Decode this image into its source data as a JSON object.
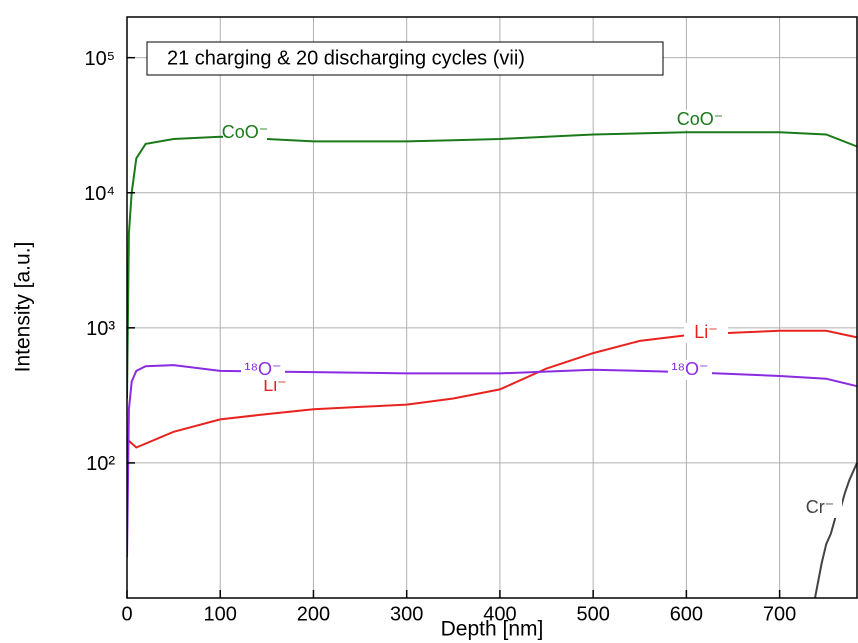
{
  "chart_data": {
    "type": "line",
    "title": "21 charging & 20 discharging cycles (vii)",
    "x_label": "Depth [nm]",
    "y_label": "Intensity [a.u.]",
    "log_y": true,
    "grid": true,
    "xlim": [
      0,
      783
    ],
    "ylim": [
      10,
      200000
    ],
    "xticks": [
      0,
      100,
      200,
      300,
      400,
      500,
      600,
      700
    ],
    "yticks": [
      {
        "value": 100,
        "label": "10²"
      },
      {
        "value": 1000,
        "label": "10³"
      },
      {
        "value": 10000,
        "label": "10⁴"
      },
      {
        "value": 100000,
        "label": "10⁵"
      }
    ],
    "series": [
      {
        "name": "CoO⁻",
        "color": "#1a7a1a",
        "x": [
          0,
          2,
          5,
          10,
          20,
          50,
          100,
          150,
          200,
          250,
          300,
          350,
          400,
          450,
          500,
          550,
          600,
          650,
          700,
          750,
          783
        ],
        "values": [
          300,
          5000,
          10000,
          18000,
          23000,
          25000,
          26000,
          25000,
          24000,
          24000,
          24000,
          24500,
          25000,
          26000,
          27000,
          27500,
          28000,
          28000,
          28000,
          27000,
          22000
        ]
      },
      {
        "name": "Li⁻",
        "color": "#e8231f",
        "x": [
          0,
          10,
          50,
          100,
          150,
          200,
          250,
          300,
          350,
          400,
          450,
          500,
          550,
          600,
          650,
          700,
          750,
          783
        ],
        "values": [
          150,
          130,
          170,
          210,
          230,
          250,
          260,
          270,
          300,
          350,
          500,
          650,
          800,
          880,
          920,
          950,
          950,
          850
        ]
      },
      {
        "name": "¹⁸O⁻",
        "color": "#8a2be2",
        "x": [
          0,
          2,
          5,
          10,
          20,
          50,
          100,
          200,
          300,
          400,
          500,
          600,
          700,
          750,
          783
        ],
        "values": [
          20,
          250,
          400,
          480,
          520,
          530,
          480,
          470,
          460,
          460,
          490,
          470,
          440,
          420,
          370
        ]
      },
      {
        "name": "Cr⁻",
        "color": "#444444",
        "x": [
          738,
          745,
          750,
          755,
          760,
          765,
          770,
          775,
          783
        ],
        "values": [
          10,
          18,
          25,
          30,
          40,
          45,
          60,
          75,
          100
        ]
      }
    ]
  }
}
